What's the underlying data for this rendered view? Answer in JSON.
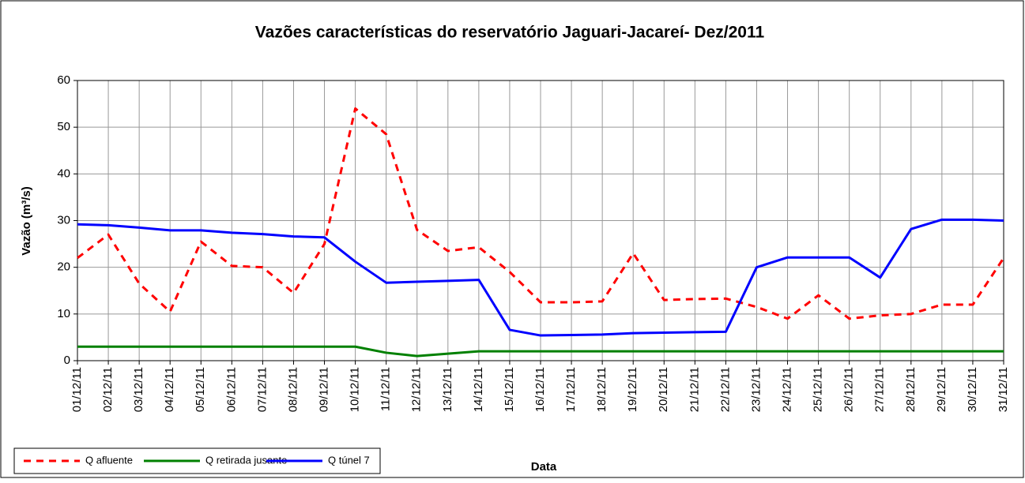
{
  "chart_data": {
    "type": "line",
    "title": "Vazões características do reservatório Jaguari-Jacareí- Dez/2011",
    "x_label": "Data",
    "y_label": "Vazão (m³/s)",
    "categories": [
      "01/12/11",
      "02/12/11",
      "03/12/11",
      "04/12/11",
      "05/12/11",
      "06/12/11",
      "07/12/11",
      "08/12/11",
      "09/12/11",
      "10/12/11",
      "11/12/11",
      "12/12/11",
      "13/12/11",
      "14/12/11",
      "15/12/11",
      "16/12/11",
      "17/12/11",
      "18/12/11",
      "19/12/11",
      "20/12/11",
      "21/12/11",
      "22/12/11",
      "23/12/11",
      "24/12/11",
      "25/12/11",
      "26/12/11",
      "27/12/11",
      "28/12/11",
      "29/12/11",
      "30/12/11",
      "31/12/11"
    ],
    "series": [
      {
        "name": "Q afluente",
        "color": "#ff0000",
        "dashed": true,
        "values": [
          22,
          27,
          16.5,
          10.5,
          25.5,
          20.3,
          20,
          14.5,
          25,
          54,
          48.5,
          28,
          23.5,
          24.3,
          19,
          12.5,
          12.5,
          12.7,
          23,
          13,
          13.2,
          13.3,
          11.5,
          9,
          14,
          9,
          9.7,
          10,
          12,
          12,
          22
        ]
      },
      {
        "name": "Q retirada jusante",
        "color": "#008000",
        "dashed": false,
        "values": [
          3,
          3,
          3,
          3,
          3,
          3,
          3,
          3,
          3,
          3,
          1.7,
          1,
          1.5,
          2,
          2,
          2,
          2,
          2,
          2,
          2,
          2,
          2,
          2,
          2,
          2,
          2,
          2,
          2,
          2,
          2,
          2
        ]
      },
      {
        "name": "Q túnel 7",
        "color": "#0000ff",
        "dashed": false,
        "values": [
          29.2,
          29,
          28.5,
          27.9,
          27.9,
          27.4,
          27.1,
          26.6,
          26.4,
          21.2,
          16.7,
          16.9,
          17.1,
          17.3,
          6.6,
          5.4,
          5.5,
          5.6,
          5.9,
          6,
          6.1,
          6.2,
          20,
          22.1,
          22.1,
          22.1,
          17.8,
          28.2,
          30.2,
          30.2,
          30
        ]
      }
    ],
    "ylim": [
      0,
      60
    ],
    "yticks": [
      0,
      10,
      20,
      30,
      40,
      50,
      60
    ],
    "grid": true
  }
}
